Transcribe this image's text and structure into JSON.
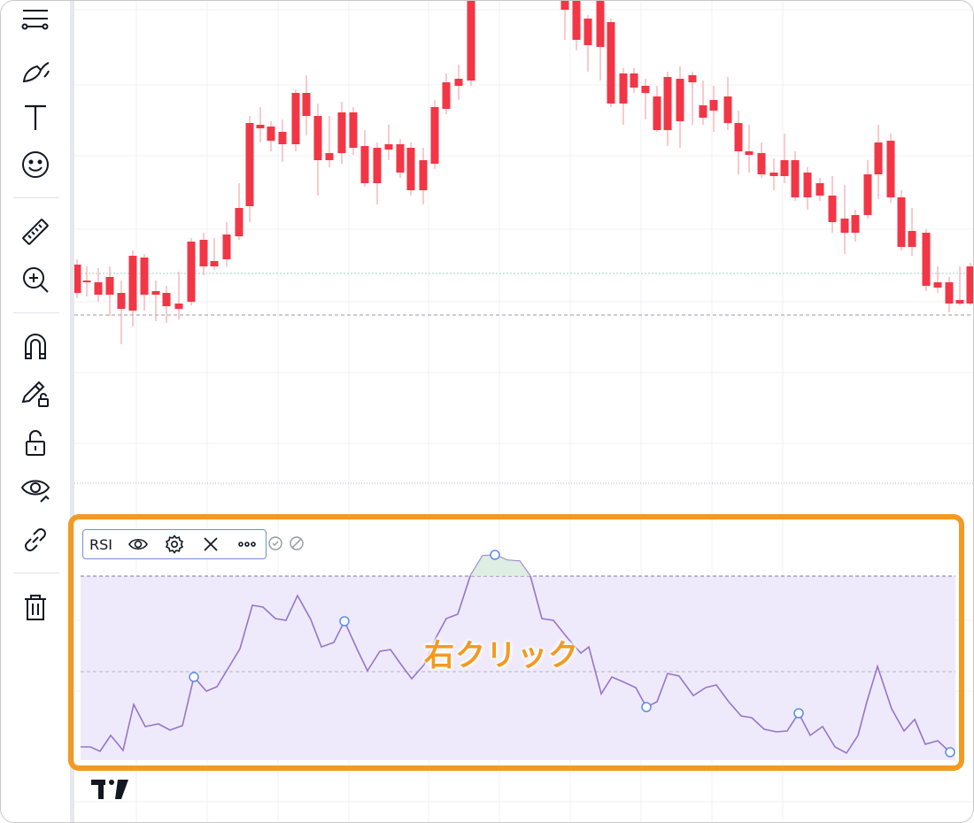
{
  "toolbar": {
    "tools": [
      {
        "name": "trend-line-tools",
        "icon": "multi-line-icon"
      },
      {
        "name": "brush-tools",
        "icon": "brush-icon"
      },
      {
        "name": "text-tool",
        "icon": "text-icon"
      },
      {
        "name": "emoji-tool",
        "icon": "smiley-icon"
      },
      {
        "name": "measure-tool",
        "icon": "ruler-icon"
      },
      {
        "name": "zoom-in-tool",
        "icon": "zoom-in-icon"
      },
      {
        "name": "magnet-mode",
        "icon": "magnet-icon"
      },
      {
        "name": "stay-in-drawing-mode",
        "icon": "pencil-lock-icon"
      },
      {
        "name": "lock-all-drawings",
        "icon": "lock-open-icon"
      },
      {
        "name": "hide-all-drawings",
        "icon": "eye-icon"
      },
      {
        "name": "link-tool",
        "icon": "link-icon"
      },
      {
        "name": "remove-drawings",
        "icon": "trash-icon"
      }
    ]
  },
  "indicator": {
    "label": "RSI",
    "buttons": [
      "eye-icon",
      "gear-icon",
      "close-icon",
      "more-icon"
    ]
  },
  "annotation": {
    "text": "右クリック"
  },
  "colors": {
    "up": "#14977a",
    "down": "#f23645",
    "rsi_line": "#9575cd",
    "rsi_band": "#efeafb",
    "highlight": "#f29a21",
    "legend_border": "#6f8fe8"
  }
}
